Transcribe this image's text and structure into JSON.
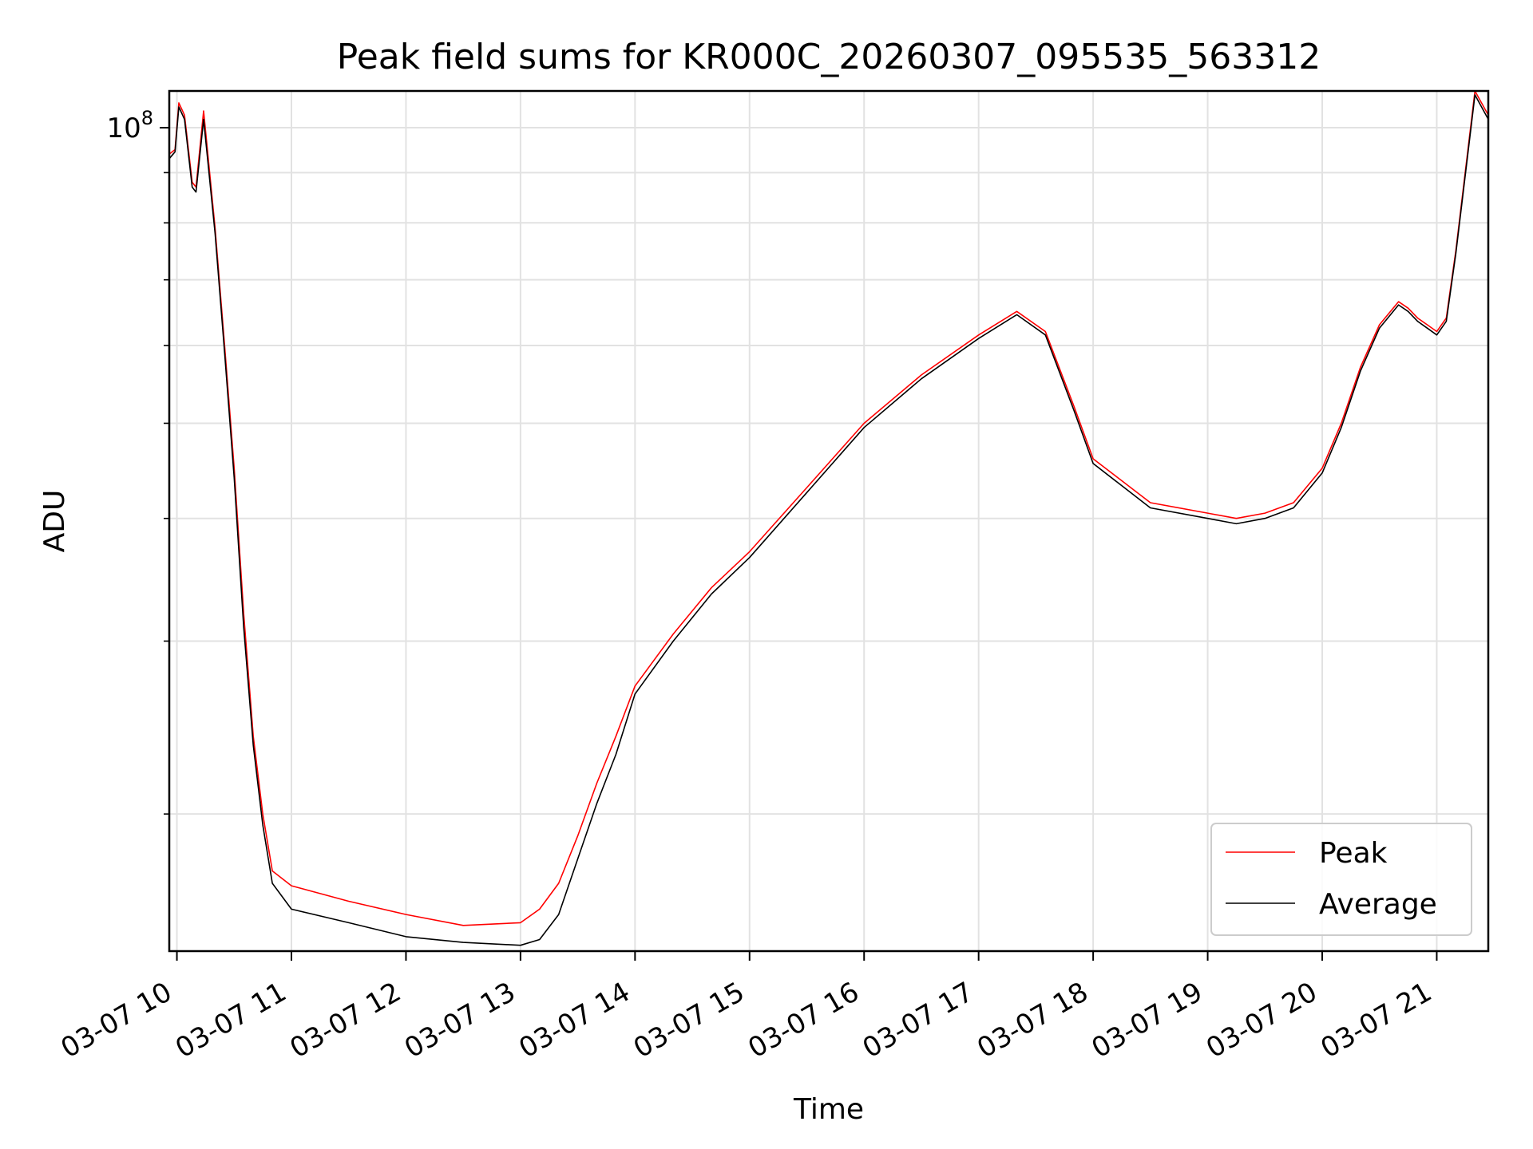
{
  "chart_data": {
    "type": "line",
    "title": "Peak field sums for KR000C_20260307_095535_563312",
    "xlabel": "Time",
    "ylabel": "ADU",
    "yscale": "log",
    "xlim": [
      "03-07 09:56",
      "03-07 21:27"
    ],
    "ylim": [
      14500000,
      109000000
    ],
    "grid": true,
    "legend": {
      "position": "lower right",
      "entries": [
        "Peak",
        "Average"
      ]
    },
    "x_tick_labels": [
      "03-07 10",
      "03-07 11",
      "03-07 12",
      "03-07 13",
      "03-07 14",
      "03-07 15",
      "03-07 16",
      "03-07 17",
      "03-07 18",
      "03-07 19",
      "03-07 20",
      "03-07 21"
    ],
    "y_tick_labels": [
      {
        "base": "10",
        "exp": "8",
        "value": 100000000
      }
    ],
    "series": [
      {
        "name": "Peak",
        "color": "#ff0000",
        "x": [
          "03-07 09:56",
          "03-07 09:59",
          "03-07 10:01",
          "03-07 10:04",
          "03-07 10:08",
          "03-07 10:10",
          "03-07 10:14",
          "03-07 10:20",
          "03-07 10:25",
          "03-07 10:30",
          "03-07 10:35",
          "03-07 10:40",
          "03-07 10:45",
          "03-07 10:50",
          "03-07 11:00",
          "03-07 11:30",
          "03-07 12:00",
          "03-07 12:30",
          "03-07 13:00",
          "03-07 13:10",
          "03-07 13:20",
          "03-07 13:30",
          "03-07 13:40",
          "03-07 13:50",
          "03-07 14:00",
          "03-07 14:20",
          "03-07 14:40",
          "03-07 15:00",
          "03-07 15:30",
          "03-07 16:00",
          "03-07 16:30",
          "03-07 17:00",
          "03-07 17:20",
          "03-07 17:35",
          "03-07 17:50",
          "03-07 18:00",
          "03-07 18:30",
          "03-07 19:00",
          "03-07 19:15",
          "03-07 19:30",
          "03-07 19:45",
          "03-07 20:00",
          "03-07 20:10",
          "03-07 20:20",
          "03-07 20:30",
          "03-07 20:40",
          "03-07 20:45",
          "03-07 20:50",
          "03-07 20:55",
          "03-07 21:00",
          "03-07 21:05",
          "03-07 21:10",
          "03-07 21:20",
          "03-07 21:27"
        ],
        "y": [
          94000000,
          95000000,
          106000000,
          103000000,
          88000000,
          87000000,
          104000000,
          79000000,
          60000000,
          45000000,
          32000000,
          24000000,
          20000000,
          17500000,
          16900000,
          16300000,
          15800000,
          15400000,
          15500000,
          16000000,
          17000000,
          19000000,
          21500000,
          24000000,
          27000000,
          30500000,
          34000000,
          37000000,
          43000000,
          50000000,
          56000000,
          61500000,
          65000000,
          62000000,
          52000000,
          46000000,
          41500000,
          40500000,
          40000000,
          40500000,
          41500000,
          45000000,
          50000000,
          57000000,
          63000000,
          66500000,
          65500000,
          64000000,
          63000000,
          62000000,
          64000000,
          75000000,
          109000000,
          103000000
        ]
      },
      {
        "name": "Average",
        "color": "#000000",
        "x": [
          "03-07 09:56",
          "03-07 09:59",
          "03-07 10:01",
          "03-07 10:04",
          "03-07 10:08",
          "03-07 10:10",
          "03-07 10:14",
          "03-07 10:20",
          "03-07 10:25",
          "03-07 10:30",
          "03-07 10:35",
          "03-07 10:40",
          "03-07 10:45",
          "03-07 10:50",
          "03-07 11:00",
          "03-07 11:30",
          "03-07 12:00",
          "03-07 12:30",
          "03-07 13:00",
          "03-07 13:10",
          "03-07 13:20",
          "03-07 13:30",
          "03-07 13:40",
          "03-07 13:50",
          "03-07 14:00",
          "03-07 14:20",
          "03-07 14:40",
          "03-07 15:00",
          "03-07 15:30",
          "03-07 16:00",
          "03-07 16:30",
          "03-07 17:00",
          "03-07 17:20",
          "03-07 17:35",
          "03-07 17:50",
          "03-07 18:00",
          "03-07 18:30",
          "03-07 19:00",
          "03-07 19:15",
          "03-07 19:30",
          "03-07 19:45",
          "03-07 20:00",
          "03-07 20:10",
          "03-07 20:20",
          "03-07 20:30",
          "03-07 20:40",
          "03-07 20:45",
          "03-07 20:50",
          "03-07 20:55",
          "03-07 21:00",
          "03-07 21:05",
          "03-07 21:10",
          "03-07 21:20",
          "03-07 21:27"
        ],
        "y": [
          93000000,
          94500000,
          105000000,
          102000000,
          87000000,
          86000000,
          102000000,
          78000000,
          59000000,
          44000000,
          31000000,
          23500000,
          19500000,
          17000000,
          16000000,
          15500000,
          15000000,
          14800000,
          14700000,
          14900000,
          15800000,
          18000000,
          20500000,
          23000000,
          26500000,
          30000000,
          33500000,
          36500000,
          42500000,
          49500000,
          55500000,
          61000000,
          64500000,
          61500000,
          51500000,
          45500000,
          41000000,
          40000000,
          39500000,
          40000000,
          41000000,
          44500000,
          49500000,
          56500000,
          62500000,
          66000000,
          65000000,
          63500000,
          62500000,
          61500000,
          63500000,
          74500000,
          108000000,
          102000000
        ]
      }
    ]
  }
}
